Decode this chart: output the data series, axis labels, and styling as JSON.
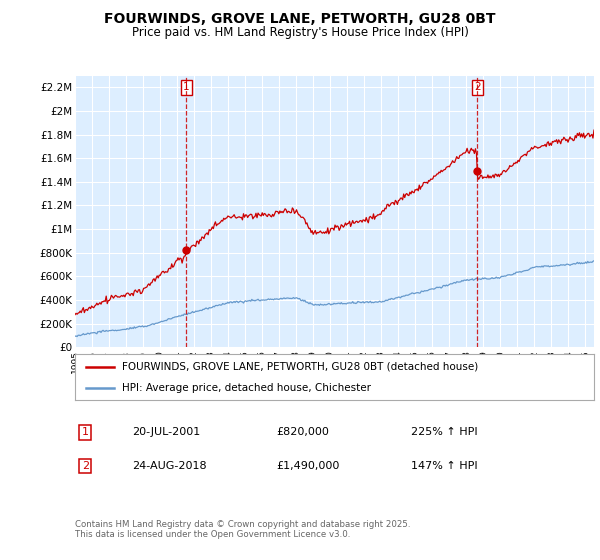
{
  "title": "FOURWINDS, GROVE LANE, PETWORTH, GU28 0BT",
  "subtitle": "Price paid vs. HM Land Registry's House Price Index (HPI)",
  "title_fontsize": 10,
  "subtitle_fontsize": 8.5,
  "bg_color": "#ffffff",
  "plot_bg_color": "#ddeeff",
  "grid_color": "#ffffff",
  "red_color": "#cc0000",
  "blue_color": "#6699cc",
  "ylim": [
    0,
    2300000
  ],
  "xlim_start": 1995.0,
  "xlim_end": 2025.5,
  "yticks": [
    0,
    200000,
    400000,
    600000,
    800000,
    1000000,
    1200000,
    1400000,
    1600000,
    1800000,
    2000000,
    2200000
  ],
  "ytick_labels": [
    "£0",
    "£200K",
    "£400K",
    "£600K",
    "£800K",
    "£1M",
    "£1.2M",
    "£1.4M",
    "£1.6M",
    "£1.8M",
    "£2M",
    "£2.2M"
  ],
  "xticks": [
    1995,
    1996,
    1997,
    1998,
    1999,
    2000,
    2001,
    2002,
    2003,
    2004,
    2005,
    2006,
    2007,
    2008,
    2009,
    2010,
    2011,
    2012,
    2013,
    2014,
    2015,
    2016,
    2017,
    2018,
    2019,
    2020,
    2021,
    2022,
    2023,
    2024,
    2025
  ],
  "sale1_x": 2001.55,
  "sale1_y": 820000,
  "sale2_x": 2018.65,
  "sale2_y": 1490000,
  "legend_line1": "FOURWINDS, GROVE LANE, PETWORTH, GU28 0BT (detached house)",
  "legend_line2": "HPI: Average price, detached house, Chichester",
  "annotation1_num": "1",
  "annotation1_date": "20-JUL-2001",
  "annotation1_price": "£820,000",
  "annotation1_hpi": "225% ↑ HPI",
  "annotation2_num": "2",
  "annotation2_date": "24-AUG-2018",
  "annotation2_price": "£1,490,000",
  "annotation2_hpi": "147% ↑ HPI",
  "footer": "Contains HM Land Registry data © Crown copyright and database right 2025.\nThis data is licensed under the Open Government Licence v3.0."
}
